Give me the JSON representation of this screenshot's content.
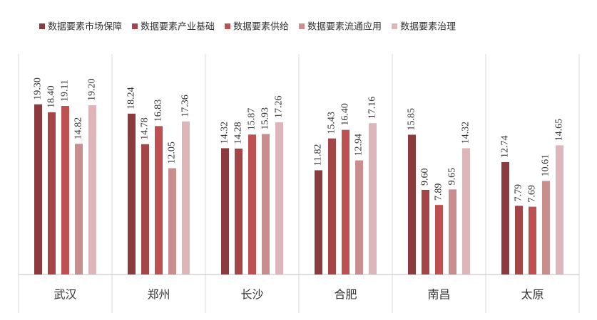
{
  "chart_data": {
    "type": "bar",
    "categories": [
      "武汉",
      "郑州",
      "长沙",
      "合肥",
      "南昌",
      "太原"
    ],
    "series": [
      {
        "name": "数据要素市场保障",
        "color": "#8b3a3e",
        "values": [
          19.3,
          18.24,
          14.32,
          11.82,
          15.85,
          12.74
        ],
        "value_labels": [
          "19.30",
          "18.24",
          "14.32",
          "11.82",
          "15.85",
          "12.74"
        ]
      },
      {
        "name": "数据要素产业基础",
        "color": "#a54548",
        "values": [
          18.4,
          14.78,
          14.28,
          15.43,
          9.6,
          7.79
        ],
        "value_labels": [
          "18.40",
          "14.78",
          "14.28",
          "15.43",
          "9.60",
          "7.79"
        ]
      },
      {
        "name": "数据要素供给",
        "color": "#bf5052",
        "values": [
          19.11,
          16.83,
          15.87,
          16.4,
          7.89,
          7.69
        ],
        "value_labels": [
          "19.11",
          "16.83",
          "15.87",
          "16.40",
          "7.89",
          "7.69"
        ]
      },
      {
        "name": "数据要素流通应用",
        "color": "#c98d8e",
        "values": [
          14.82,
          12.05,
          15.93,
          12.94,
          9.65,
          10.61
        ],
        "value_labels": [
          "14.82",
          "12.05",
          "15.93",
          "12.94",
          "9.65",
          "10.61"
        ]
      },
      {
        "name": "数据要素治理",
        "color": "#deb6b9",
        "values": [
          19.2,
          17.36,
          17.26,
          17.16,
          14.32,
          14.65
        ],
        "value_labels": [
          "19.20",
          "17.36",
          "17.26",
          "17.16",
          "14.32",
          "14.65"
        ]
      }
    ],
    "ylim": [
      0,
      25
    ]
  }
}
